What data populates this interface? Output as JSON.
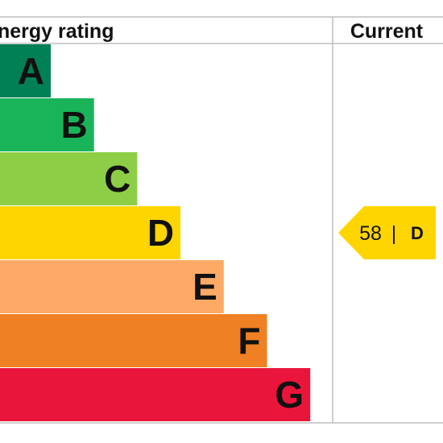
{
  "header": {
    "rating_title": "nergy rating",
    "current_title": "Current"
  },
  "chart_data": {
    "type": "bar",
    "categories": [
      "A",
      "B",
      "C",
      "D",
      "E",
      "F",
      "G"
    ],
    "colors": [
      "#008054",
      "#19b459",
      "#8dce46",
      "#ffd500",
      "#fcaa65",
      "#ef8023",
      "#e9153b"
    ],
    "current": {
      "score": "58",
      "separator": "|",
      "band": "D",
      "color": "#ffd500"
    }
  }
}
